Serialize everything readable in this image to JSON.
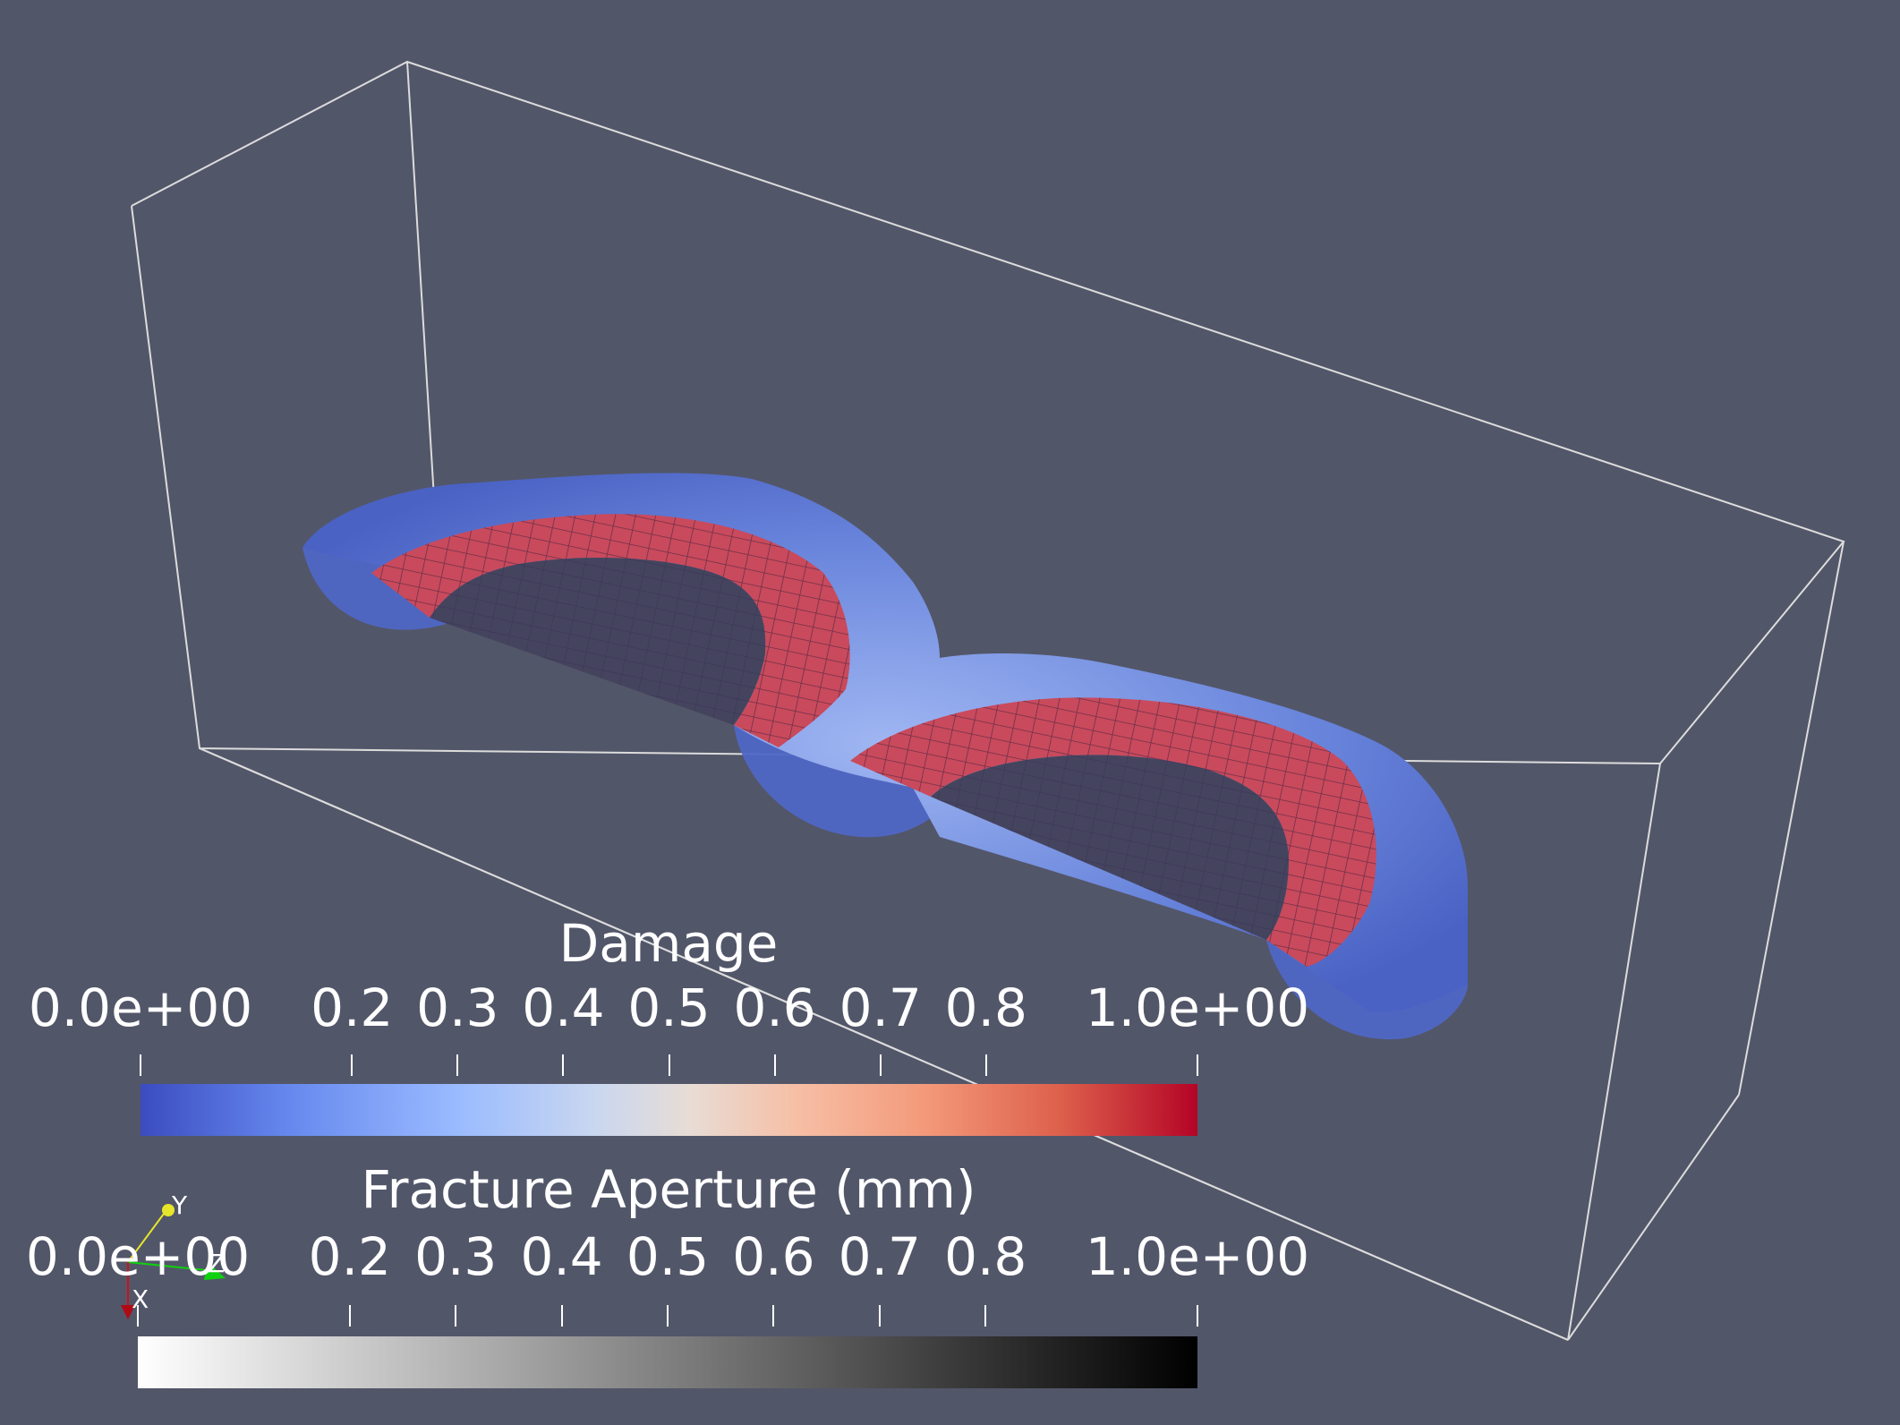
{
  "damage_bar": {
    "title": "Damage",
    "tick_labels": [
      "0.0e+00",
      "0.2",
      "0.3",
      "0.4",
      "0.5",
      "0.6",
      "0.7",
      "0.8",
      "1.0e+00"
    ],
    "tick_values": [
      0.0,
      0.2,
      0.3,
      0.4,
      0.5,
      0.6,
      0.7,
      0.8,
      1.0
    ],
    "colormap": [
      "#3b4cc0",
      "#9abbff",
      "#dddcdc",
      "#f49a7b",
      "#b40426"
    ]
  },
  "aperture_bar": {
    "title": "Fracture Aperture (mm)",
    "tick_labels": [
      "0.0e+00",
      "0.2",
      "0.3",
      "0.4",
      "0.5",
      "0.6",
      "0.7",
      "0.8",
      "1.0e+00"
    ],
    "tick_values": [
      0.0,
      0.2,
      0.3,
      0.4,
      0.5,
      0.6,
      0.7,
      0.8,
      1.0
    ],
    "colormap": [
      "#ffffff",
      "#000000"
    ]
  },
  "orientation_axes": {
    "x_label": "X",
    "y_label": "Y",
    "z_label": "Z",
    "x_color": "#d0101a",
    "y_color": "#e6e62a",
    "z_color": "#10d010"
  },
  "colors": {
    "background": "#525669",
    "outline": "#dcdcdc"
  }
}
